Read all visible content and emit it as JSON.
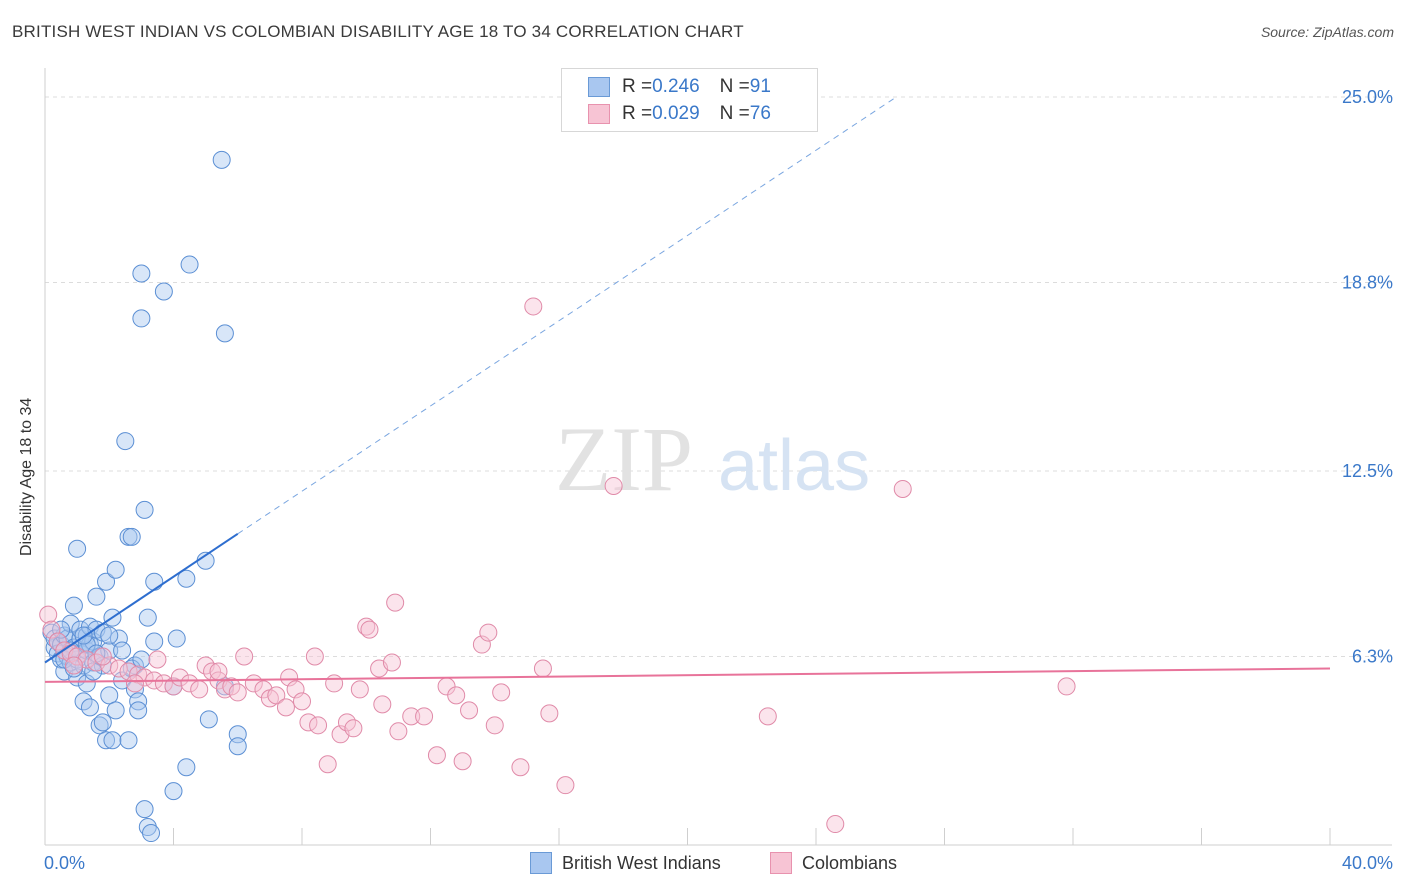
{
  "title": "BRITISH WEST INDIAN VS COLOMBIAN DISABILITY AGE 18 TO 34 CORRELATION CHART",
  "source": "Source: ZipAtlas.com",
  "watermark": {
    "zip": "ZIP",
    "atlas": "atlas"
  },
  "legend_top": {
    "rows": [
      {
        "r_label": "R = ",
        "r_value": "0.246",
        "n_label": "N = ",
        "n_value": "91",
        "color": "#a9c7f0",
        "border": "#6a9ad6"
      },
      {
        "r_label": "R = ",
        "r_value": "0.029",
        "n_label": "N = ",
        "n_value": "76",
        "color": "#f7c4d4",
        "border": "#e892ae"
      }
    ]
  },
  "legend_bottom": [
    {
      "label": "British West Indians",
      "color": "#a9c7f0",
      "border": "#6a9ad6"
    },
    {
      "label": "Colombians",
      "color": "#f7c4d4",
      "border": "#e892ae"
    }
  ],
  "chart_data": {
    "type": "scatter",
    "ylabel": "Disability Age 18 to 34",
    "xlim": [
      0,
      40
    ],
    "ylim": [
      0,
      25
    ],
    "x_tick_labels": {
      "left": "0.0%",
      "right": "40.0%"
    },
    "y_ticks": [
      {
        "value": 25.0,
        "label": "25.0%"
      },
      {
        "value": 18.8,
        "label": "18.8%"
      },
      {
        "value": 12.5,
        "label": "12.5%"
      },
      {
        "value": 6.3,
        "label": "6.3%"
      }
    ],
    "series": [
      {
        "name": "British West Indians",
        "color": "#a9c7f0",
        "stroke": "#5b8fd4",
        "trend": {
          "x0": 0.0,
          "y0": 6.1,
          "x1": 6.0,
          "y1": 10.4,
          "dash_to_x": 26.5,
          "dash_to_y": 25.0,
          "color": "#2e6ecf"
        },
        "points": [
          [
            0.2,
            7.1
          ],
          [
            0.3,
            6.6
          ],
          [
            0.3,
            6.9
          ],
          [
            0.4,
            6.8
          ],
          [
            0.4,
            6.4
          ],
          [
            0.5,
            6.2
          ],
          [
            0.5,
            6.7
          ],
          [
            0.6,
            7.0
          ],
          [
            0.6,
            5.8
          ],
          [
            0.7,
            6.9
          ],
          [
            0.7,
            6.3
          ],
          [
            0.8,
            7.4
          ],
          [
            0.8,
            6.1
          ],
          [
            0.9,
            6.6
          ],
          [
            0.9,
            8.0
          ],
          [
            1.0,
            6.2
          ],
          [
            1.0,
            5.6
          ],
          [
            1.0,
            9.9
          ],
          [
            1.1,
            6.9
          ],
          [
            1.1,
            7.2
          ],
          [
            1.1,
            6.4
          ],
          [
            1.2,
            6.0
          ],
          [
            1.2,
            4.8
          ],
          [
            1.3,
            7.0
          ],
          [
            1.3,
            6.5
          ],
          [
            1.3,
            5.4
          ],
          [
            1.4,
            6.7
          ],
          [
            1.4,
            7.3
          ],
          [
            1.4,
            4.6
          ],
          [
            1.5,
            6.8
          ],
          [
            1.5,
            6.1
          ],
          [
            1.6,
            8.3
          ],
          [
            1.6,
            7.2
          ],
          [
            1.7,
            6.3
          ],
          [
            1.7,
            4.0
          ],
          [
            1.8,
            6.0
          ],
          [
            1.8,
            7.1
          ],
          [
            1.9,
            3.5
          ],
          [
            1.9,
            8.8
          ],
          [
            2.0,
            6.5
          ],
          [
            2.0,
            5.0
          ],
          [
            2.1,
            7.6
          ],
          [
            2.1,
            3.5
          ],
          [
            2.2,
            9.2
          ],
          [
            2.2,
            4.5
          ],
          [
            2.3,
            6.9
          ],
          [
            2.4,
            5.5
          ],
          [
            2.5,
            13.5
          ],
          [
            2.6,
            10.3
          ],
          [
            2.6,
            3.5
          ],
          [
            2.7,
            10.3
          ],
          [
            2.8,
            5.2
          ],
          [
            2.8,
            6.0
          ],
          [
            2.9,
            4.8
          ],
          [
            2.9,
            4.5
          ],
          [
            3.0,
            19.1
          ],
          [
            3.0,
            17.6
          ],
          [
            3.1,
            11.2
          ],
          [
            3.1,
            1.2
          ],
          [
            3.2,
            7.6
          ],
          [
            3.2,
            0.6
          ],
          [
            3.3,
            0.4
          ],
          [
            3.4,
            8.8
          ],
          [
            3.4,
            6.8
          ],
          [
            3.7,
            18.5
          ],
          [
            4.0,
            5.3
          ],
          [
            4.0,
            1.8
          ],
          [
            4.1,
            6.9
          ],
          [
            4.4,
            8.9
          ],
          [
            4.4,
            2.6
          ],
          [
            4.5,
            19.4
          ],
          [
            5.0,
            9.5
          ],
          [
            5.1,
            4.2
          ],
          [
            5.5,
            22.9
          ],
          [
            5.6,
            5.3
          ],
          [
            5.6,
            17.1
          ],
          [
            6.0,
            3.7
          ],
          [
            6.0,
            3.3
          ],
          [
            1.3,
            6.7
          ],
          [
            0.6,
            6.2
          ],
          [
            0.9,
            5.9
          ],
          [
            1.6,
            6.4
          ],
          [
            2.4,
            6.5
          ],
          [
            2.0,
            7.0
          ],
          [
            0.5,
            7.2
          ],
          [
            1.2,
            7.0
          ],
          [
            0.8,
            6.5
          ],
          [
            1.5,
            5.8
          ],
          [
            2.7,
            5.9
          ],
          [
            3.0,
            6.2
          ],
          [
            1.8,
            4.1
          ]
        ]
      },
      {
        "name": "Colombians",
        "color": "#f7c4d4",
        "stroke": "#e08aa8",
        "trend": {
          "x0": 0.0,
          "y0": 5.45,
          "x1": 40.0,
          "y1": 5.9,
          "color": "#e8739a"
        },
        "points": [
          [
            0.1,
            7.7
          ],
          [
            0.2,
            7.2
          ],
          [
            0.4,
            6.8
          ],
          [
            0.6,
            6.5
          ],
          [
            0.8,
            6.4
          ],
          [
            1.0,
            6.3
          ],
          [
            1.3,
            6.2
          ],
          [
            1.6,
            6.1
          ],
          [
            2.0,
            6.0
          ],
          [
            2.3,
            5.9
          ],
          [
            2.6,
            5.8
          ],
          [
            2.9,
            5.7
          ],
          [
            3.1,
            5.6
          ],
          [
            3.4,
            5.5
          ],
          [
            3.7,
            5.4
          ],
          [
            4.0,
            5.3
          ],
          [
            4.2,
            5.6
          ],
          [
            4.5,
            5.4
          ],
          [
            4.8,
            5.2
          ],
          [
            5.0,
            6.0
          ],
          [
            5.2,
            5.8
          ],
          [
            5.4,
            5.5
          ],
          [
            5.6,
            5.2
          ],
          [
            5.8,
            5.3
          ],
          [
            6.0,
            5.1
          ],
          [
            6.2,
            6.3
          ],
          [
            6.5,
            5.4
          ],
          [
            6.8,
            5.2
          ],
          [
            7.0,
            4.9
          ],
          [
            7.2,
            5.0
          ],
          [
            7.5,
            4.6
          ],
          [
            7.6,
            5.6
          ],
          [
            7.8,
            5.2
          ],
          [
            8.0,
            4.8
          ],
          [
            8.2,
            4.1
          ],
          [
            8.4,
            6.3
          ],
          [
            8.5,
            4.0
          ],
          [
            8.8,
            2.7
          ],
          [
            9.0,
            5.4
          ],
          [
            9.2,
            3.7
          ],
          [
            9.4,
            4.1
          ],
          [
            9.6,
            3.9
          ],
          [
            9.8,
            5.2
          ],
          [
            10.0,
            7.3
          ],
          [
            10.1,
            7.2
          ],
          [
            10.4,
            5.9
          ],
          [
            10.5,
            4.7
          ],
          [
            10.8,
            6.1
          ],
          [
            10.9,
            8.1
          ],
          [
            11.0,
            3.8
          ],
          [
            11.4,
            4.3
          ],
          [
            11.8,
            4.3
          ],
          [
            12.2,
            3.0
          ],
          [
            12.5,
            5.3
          ],
          [
            12.8,
            5.0
          ],
          [
            13.0,
            2.8
          ],
          [
            13.2,
            4.5
          ],
          [
            13.6,
            6.7
          ],
          [
            13.8,
            7.1
          ],
          [
            14.0,
            4.0
          ],
          [
            14.2,
            5.1
          ],
          [
            14.8,
            2.6
          ],
          [
            15.2,
            18.0
          ],
          [
            15.5,
            5.9
          ],
          [
            15.7,
            4.4
          ],
          [
            16.2,
            2.0
          ],
          [
            17.7,
            12.0
          ],
          [
            22.5,
            4.3
          ],
          [
            24.6,
            0.7
          ],
          [
            26.7,
            11.9
          ],
          [
            31.8,
            5.3
          ],
          [
            0.9,
            6.0
          ],
          [
            1.8,
            6.3
          ],
          [
            2.8,
            5.4
          ],
          [
            3.5,
            6.2
          ],
          [
            5.4,
            5.8
          ]
        ]
      }
    ],
    "grid": true
  }
}
